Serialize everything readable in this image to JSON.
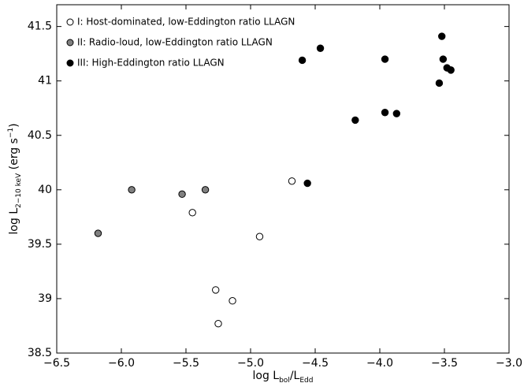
{
  "chart_data": {
    "type": "scatter",
    "x_label": [
      "log L",
      "bol",
      "/L",
      "Edd"
    ],
    "y_label": [
      "log L",
      "2−10 keV",
      " (erg s",
      "−1",
      ")"
    ],
    "xlim": [
      -6.5,
      -3.0
    ],
    "ylim": [
      38.5,
      41.7
    ],
    "xticks": [
      {
        "value": -6.5,
        "label": "−6.5"
      },
      {
        "value": -6.0,
        "label": "−6.0"
      },
      {
        "value": -5.5,
        "label": "−5.5"
      },
      {
        "value": -5.0,
        "label": "−5.0"
      },
      {
        "value": -4.5,
        "label": "−4.5"
      },
      {
        "value": -4.0,
        "label": "−4.0"
      },
      {
        "value": -3.5,
        "label": "−3.5"
      },
      {
        "value": -3.0,
        "label": "−3.0"
      }
    ],
    "yticks": [
      38.5,
      39.0,
      39.5,
      40.0,
      40.5,
      41.0,
      41.5
    ],
    "legend": "upper left",
    "series": [
      {
        "name": "I: Host-dominated, low-Eddington ratio LLAGN",
        "color": "#ffffff",
        "x": [
          -4.68,
          -5.45,
          -4.93,
          -5.27,
          -5.14,
          -5.25
        ],
        "values": [
          40.08,
          39.79,
          39.57,
          39.08,
          38.98,
          38.77
        ]
      },
      {
        "name": "II: Radio-loud, low-Eddington ratio LLAGN",
        "color": "#808080",
        "x": [
          -6.18,
          -5.92,
          -5.53,
          -5.35
        ],
        "values": [
          39.6,
          40.0,
          39.96,
          40.0
        ]
      },
      {
        "name": "III: High-Eddington ratio LLAGN",
        "color": "#000000",
        "x": [
          -4.6,
          -4.46,
          -3.96,
          -3.52,
          -3.51,
          -3.48,
          -3.45,
          -3.54,
          -4.19,
          -3.96,
          -3.87,
          -4.56
        ],
        "values": [
          41.19,
          41.3,
          41.2,
          41.41,
          41.2,
          41.12,
          41.1,
          40.98,
          40.64,
          40.71,
          40.7,
          40.06
        ]
      }
    ]
  }
}
